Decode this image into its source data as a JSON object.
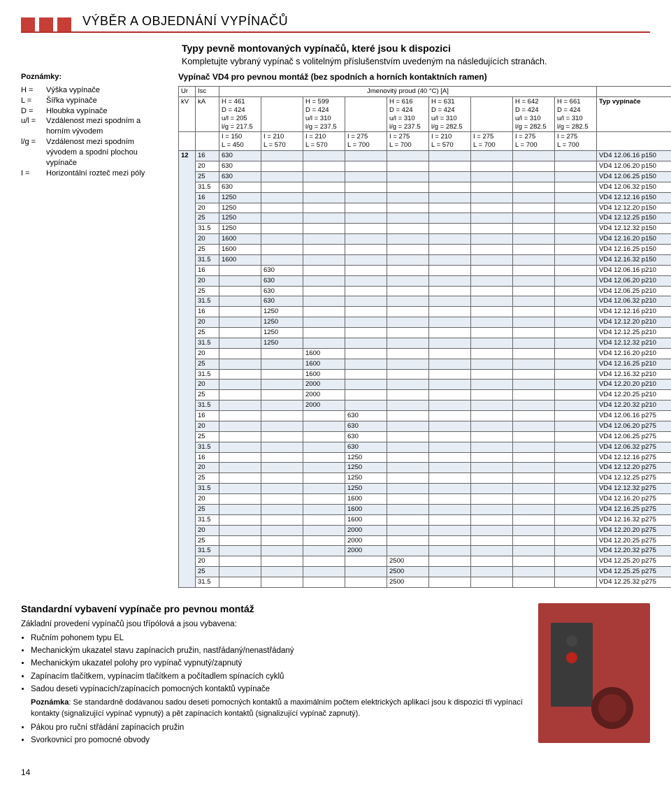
{
  "section_title": "VÝBĚR A OBJEDNÁNÍ VYPÍNAČŮ",
  "intro": {
    "headline": "Typy pevně montovaných vypínačů, které jsou k dispozici",
    "sub": "Kompletujte vybraný vypínač s volitelným příslušenstvím uvedeným na následujících stranách."
  },
  "notes": {
    "title": "Poznámky:",
    "items": [
      {
        "k": "H  =",
        "v": "Výška vypínače"
      },
      {
        "k": "L  =",
        "v": "Šířka vypínače"
      },
      {
        "k": "D  =",
        "v": "Hloubka vypínače"
      },
      {
        "k": "u/l =",
        "v": "Vzdálenost mezi spodním a horním vývodem"
      },
      {
        "k": "l/g =",
        "v": "Vzdálenost mezi spodním vývodem a spodní plochou vypínače"
      },
      {
        "k": "I   =",
        "v": "Horizontální rozteč mezi póly"
      }
    ]
  },
  "table": {
    "caption": "Vypínač VD4 pro pevnou montáž (bez spodních a horních kontaktních ramen)",
    "head": {
      "col1_label_a": "Ur",
      "col1_label_b": "kV",
      "col2_label_a": "Isc",
      "col2_label_b": "kA",
      "group_label": "Jmenovitý proud (40 °C) [A]",
      "type_label": "Typ vypínače",
      "dim_groups": [
        {
          "h": "H = 461",
          "d": "D = 424",
          "u": "u/l = 205",
          "l": "l/g = 217.5",
          "i": "I = 150",
          "L": "L = 450"
        },
        {
          "h": "",
          "d": "",
          "u": "",
          "l": "",
          "i": "I = 210",
          "L": "L = 570"
        },
        {
          "h": "H = 599",
          "d": "D = 424",
          "u": "u/l = 310",
          "l": "l/g = 237.5",
          "i": "I = 210",
          "L": "L = 570"
        },
        {
          "h": "",
          "d": "",
          "u": "",
          "l": "",
          "i": "I = 275",
          "L": "L = 700"
        },
        {
          "h": "H = 616",
          "d": "D = 424",
          "u": "u/l = 310",
          "l": "l/g = 237.5",
          "i": "I = 275",
          "L": "L = 700"
        },
        {
          "h": "H = 631",
          "d": "D = 424",
          "u": "u/l = 310",
          "l": "l/g = 282.5",
          "i": "I = 210",
          "L": "L = 570"
        },
        {
          "h": "",
          "d": "",
          "u": "",
          "l": "",
          "i": "I = 275",
          "L": "L = 700"
        },
        {
          "h": "H = 642",
          "d": "D = 424",
          "u": "u/l = 310",
          "l": "l/g = 282.5",
          "i": "I = 275",
          "L": "L = 700"
        },
        {
          "h": "H = 661",
          "d": "D = 424",
          "u": "u/l = 310",
          "l": "l/g = 282.5",
          "i": "I = 275",
          "L": "L = 700"
        }
      ]
    },
    "kv": "12",
    "rows": [
      {
        "ka": "16",
        "c": [
          "630",
          "",
          "",
          "",
          "",
          "",
          "",
          "",
          ""
        ],
        "t": "VD4 12.06.16 p150",
        "s": 1
      },
      {
        "ka": "20",
        "c": [
          "630",
          "",
          "",
          "",
          "",
          "",
          "",
          "",
          ""
        ],
        "t": "VD4 12.06.20 p150",
        "s": 0
      },
      {
        "ka": "25",
        "c": [
          "630",
          "",
          "",
          "",
          "",
          "",
          "",
          "",
          ""
        ],
        "t": "VD4 12.06.25 p150",
        "s": 1
      },
      {
        "ka": "31.5",
        "c": [
          "630",
          "",
          "",
          "",
          "",
          "",
          "",
          "",
          ""
        ],
        "t": "VD4 12.06.32 p150",
        "s": 0
      },
      {
        "ka": "16",
        "c": [
          "1250",
          "",
          "",
          "",
          "",
          "",
          "",
          "",
          ""
        ],
        "t": "VD4 12.12.16 p150",
        "s": 1
      },
      {
        "ka": "20",
        "c": [
          "1250",
          "",
          "",
          "",
          "",
          "",
          "",
          "",
          ""
        ],
        "t": "VD4 12.12.20 p150",
        "s": 0
      },
      {
        "ka": "25",
        "c": [
          "1250",
          "",
          "",
          "",
          "",
          "",
          "",
          "",
          ""
        ],
        "t": "VD4 12.12.25 p150",
        "s": 1
      },
      {
        "ka": "31.5",
        "c": [
          "1250",
          "",
          "",
          "",
          "",
          "",
          "",
          "",
          ""
        ],
        "t": "VD4 12.12.32 p150",
        "s": 0
      },
      {
        "ka": "20",
        "c": [
          "1600",
          "",
          "",
          "",
          "",
          "",
          "",
          "",
          ""
        ],
        "t": "VD4 12.16.20 p150",
        "s": 1
      },
      {
        "ka": "25",
        "c": [
          "1600",
          "",
          "",
          "",
          "",
          "",
          "",
          "",
          ""
        ],
        "t": "VD4 12.16.25 p150",
        "s": 0
      },
      {
        "ka": "31.5",
        "c": [
          "1600",
          "",
          "",
          "",
          "",
          "",
          "",
          "",
          ""
        ],
        "t": "VD4 12.16.32 p150",
        "s": 1
      },
      {
        "ka": "16",
        "c": [
          "",
          "630",
          "",
          "",
          "",
          "",
          "",
          "",
          ""
        ],
        "t": "VD4 12.06.16 p210",
        "s": 0
      },
      {
        "ka": "20",
        "c": [
          "",
          "630",
          "",
          "",
          "",
          "",
          "",
          "",
          ""
        ],
        "t": "VD4 12.06.20 p210",
        "s": 1
      },
      {
        "ka": "25",
        "c": [
          "",
          "630",
          "",
          "",
          "",
          "",
          "",
          "",
          ""
        ],
        "t": "VD4 12.06.25 p210",
        "s": 0
      },
      {
        "ka": "31.5",
        "c": [
          "",
          "630",
          "",
          "",
          "",
          "",
          "",
          "",
          ""
        ],
        "t": "VD4 12.06.32 p210",
        "s": 1
      },
      {
        "ka": "16",
        "c": [
          "",
          "1250",
          "",
          "",
          "",
          "",
          "",
          "",
          ""
        ],
        "t": "VD4 12.12.16 p210",
        "s": 0
      },
      {
        "ka": "20",
        "c": [
          "",
          "1250",
          "",
          "",
          "",
          "",
          "",
          "",
          ""
        ],
        "t": "VD4 12.12.20 p210",
        "s": 1
      },
      {
        "ka": "25",
        "c": [
          "",
          "1250",
          "",
          "",
          "",
          "",
          "",
          "",
          ""
        ],
        "t": "VD4 12.12.25 p210",
        "s": 0
      },
      {
        "ka": "31.5",
        "c": [
          "",
          "1250",
          "",
          "",
          "",
          "",
          "",
          "",
          ""
        ],
        "t": "VD4 12.12.32 p210",
        "s": 1
      },
      {
        "ka": "20",
        "c": [
          "",
          "",
          "1600",
          "",
          "",
          "",
          "",
          "",
          ""
        ],
        "t": "VD4 12.16.20 p210",
        "s": 0
      },
      {
        "ka": "25",
        "c": [
          "",
          "",
          "1600",
          "",
          "",
          "",
          "",
          "",
          ""
        ],
        "t": "VD4 12.16.25 p210",
        "s": 1
      },
      {
        "ka": "31.5",
        "c": [
          "",
          "",
          "1600",
          "",
          "",
          "",
          "",
          "",
          ""
        ],
        "t": "VD4 12.16.32 p210",
        "s": 0
      },
      {
        "ka": "20",
        "c": [
          "",
          "",
          "2000",
          "",
          "",
          "",
          "",
          "",
          ""
        ],
        "t": "VD4 12.20.20 p210",
        "s": 1
      },
      {
        "ka": "25",
        "c": [
          "",
          "",
          "2000",
          "",
          "",
          "",
          "",
          "",
          ""
        ],
        "t": "VD4 12.20.25 p210",
        "s": 0
      },
      {
        "ka": "31.5",
        "c": [
          "",
          "",
          "2000",
          "",
          "",
          "",
          "",
          "",
          ""
        ],
        "t": "VD4 12.20.32 p210",
        "s": 1
      },
      {
        "ka": "16",
        "c": [
          "",
          "",
          "",
          "630",
          "",
          "",
          "",
          "",
          ""
        ],
        "t": "VD4 12.06.16 p275",
        "s": 0
      },
      {
        "ka": "20",
        "c": [
          "",
          "",
          "",
          "630",
          "",
          "",
          "",
          "",
          ""
        ],
        "t": "VD4 12.06.20 p275",
        "s": 1
      },
      {
        "ka": "25",
        "c": [
          "",
          "",
          "",
          "630",
          "",
          "",
          "",
          "",
          ""
        ],
        "t": "VD4 12.06.25 p275",
        "s": 0
      },
      {
        "ka": "31.5",
        "c": [
          "",
          "",
          "",
          "630",
          "",
          "",
          "",
          "",
          ""
        ],
        "t": "VD4 12.06.32 p275",
        "s": 1
      },
      {
        "ka": "16",
        "c": [
          "",
          "",
          "",
          "1250",
          "",
          "",
          "",
          "",
          ""
        ],
        "t": "VD4 12.12.16 p275",
        "s": 0
      },
      {
        "ka": "20",
        "c": [
          "",
          "",
          "",
          "1250",
          "",
          "",
          "",
          "",
          ""
        ],
        "t": "VD4 12.12.20 p275",
        "s": 1
      },
      {
        "ka": "25",
        "c": [
          "",
          "",
          "",
          "1250",
          "",
          "",
          "",
          "",
          ""
        ],
        "t": "VD4 12.12.25 p275",
        "s": 0
      },
      {
        "ka": "31.5",
        "c": [
          "",
          "",
          "",
          "1250",
          "",
          "",
          "",
          "",
          ""
        ],
        "t": "VD4 12.12.32 p275",
        "s": 1
      },
      {
        "ka": "20",
        "c": [
          "",
          "",
          "",
          "1600",
          "",
          "",
          "",
          "",
          ""
        ],
        "t": "VD4 12.16.20 p275",
        "s": 0
      },
      {
        "ka": "25",
        "c": [
          "",
          "",
          "",
          "1600",
          "",
          "",
          "",
          "",
          ""
        ],
        "t": "VD4 12.16.25 p275",
        "s": 1
      },
      {
        "ka": "31.5",
        "c": [
          "",
          "",
          "",
          "1600",
          "",
          "",
          "",
          "",
          ""
        ],
        "t": "VD4 12.16.32 p275",
        "s": 0
      },
      {
        "ka": "20",
        "c": [
          "",
          "",
          "",
          "2000",
          "",
          "",
          "",
          "",
          ""
        ],
        "t": "VD4 12.20.20 p275",
        "s": 1
      },
      {
        "ka": "25",
        "c": [
          "",
          "",
          "",
          "2000",
          "",
          "",
          "",
          "",
          ""
        ],
        "t": "VD4 12.20.25 p275",
        "s": 0
      },
      {
        "ka": "31.5",
        "c": [
          "",
          "",
          "",
          "2000",
          "",
          "",
          "",
          "",
          ""
        ],
        "t": "VD4 12.20.32 p275",
        "s": 1
      },
      {
        "ka": "20",
        "c": [
          "",
          "",
          "",
          "",
          "2500",
          "",
          "",
          "",
          ""
        ],
        "t": "VD4 12.25.20 p275",
        "s": 0
      },
      {
        "ka": "25",
        "c": [
          "",
          "",
          "",
          "",
          "2500",
          "",
          "",
          "",
          ""
        ],
        "t": "VD4 12.25.25 p275",
        "s": 1
      },
      {
        "ka": "31.5",
        "c": [
          "",
          "",
          "",
          "",
          "2500",
          "",
          "",
          "",
          ""
        ],
        "t": "VD4 12.25.32 p275",
        "s": 0
      }
    ],
    "colors": {
      "stripe": "#e6edf4",
      "border": "#666666",
      "header_accent": "#b52e2a"
    }
  },
  "std": {
    "title": "Standardní vybavení vypínače pro pevnou montáž",
    "lead": "Základní provedení vypínačů jsou třípólová a jsou vybavena:",
    "items": [
      "Ručním pohonem typu EL",
      "Mechanickým ukazatel stavu zapínacích pružin, nastřádaný/nenastřádaný",
      "Mechanickým ukazatel polohy pro vypínač vypnutý/zapnutý",
      "Zapínacím tlačítkem, vypínacím tlačítkem a počítadlem spínacích cyklů",
      "Sadou deseti vypínacích/zapínacích pomocných kontaktů vypínače"
    ],
    "note_label": "Poznámka",
    "note_text": ": Se standardně dodávanou sadou deseti pomocných kontaktů a maximálním počtem elektrických aplikací jsou k dispozici tři vypínací kontakty (signalizující vypínač vypnutý) a pět zapínacích kontaktů (signalizující vypínač zapnutý).",
    "items2": [
      "Pákou pro ruční střádání zapínacích pružin",
      "Svorkovnicí pro pomocné obvody"
    ]
  },
  "page_number": "14"
}
